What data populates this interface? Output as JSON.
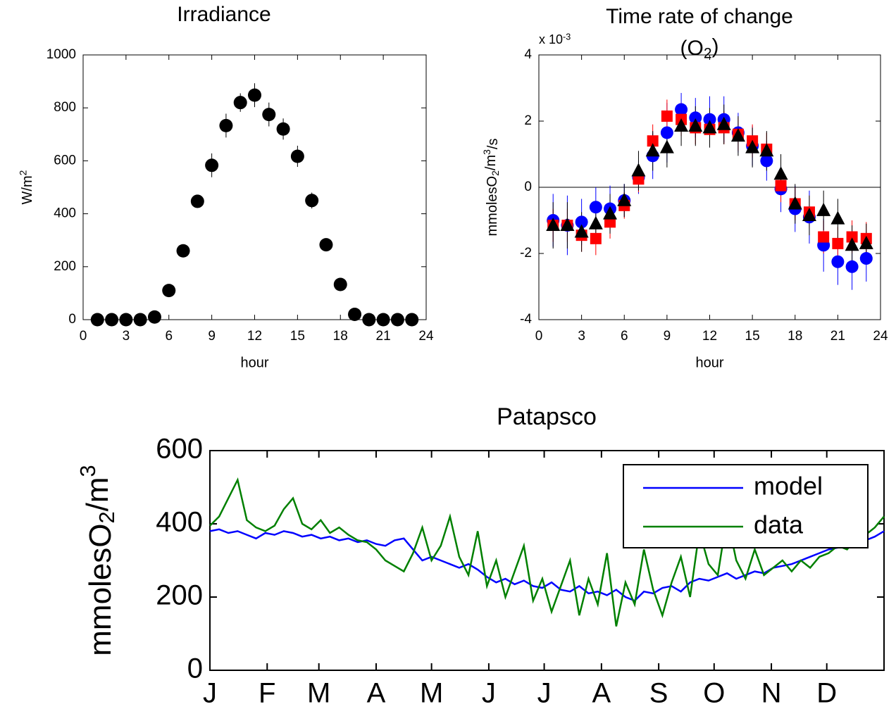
{
  "chart_data": [
    {
      "type": "errorbar",
      "title": [
        [
          {
            "text": "Irradiance"
          }
        ]
      ],
      "ylabel": [
        {
          "text": "W/m"
        },
        {
          "sup": "2"
        }
      ],
      "xlabel": "hour",
      "xlim": [
        0,
        24
      ],
      "xticks": [
        0,
        3,
        6,
        9,
        12,
        15,
        18,
        21,
        24
      ],
      "ylim": [
        0,
        1000
      ],
      "yticks": [
        0,
        200,
        400,
        600,
        800,
        1000
      ],
      "series": [
        {
          "color": "#000000",
          "marker": "circle",
          "x": [
            1,
            2,
            3,
            4,
            5,
            6,
            7,
            8,
            9,
            10,
            11,
            12,
            13,
            14,
            15,
            16,
            17,
            18,
            19,
            20,
            21,
            22,
            23
          ],
          "values": [
            0,
            0,
            0,
            0,
            10,
            110,
            260,
            447,
            583,
            733,
            820,
            848,
            775,
            720,
            617,
            450,
            283,
            133,
            20,
            0,
            0,
            0,
            0
          ],
          "errors": [
            0,
            0,
            0,
            0,
            5,
            15,
            20,
            25,
            45,
            45,
            35,
            45,
            45,
            40,
            40,
            30,
            20,
            15,
            5,
            0,
            0,
            0,
            0
          ]
        }
      ]
    },
    {
      "type": "errorbar",
      "title": [
        [
          {
            "text": "Time rate of change"
          }
        ],
        [
          {
            "text": "(O"
          },
          {
            "sub": "2"
          },
          {
            "text": ")"
          }
        ]
      ],
      "multiplier": [
        {
          "text": "x 10"
        },
        {
          "sup": "-3"
        }
      ],
      "ylabel": [
        {
          "text": "mmolesO"
        },
        {
          "sub": "2"
        },
        {
          "text": "/m"
        },
        {
          "sup": "3"
        },
        {
          "text": "/s"
        }
      ],
      "xlabel": "hour",
      "xlim": [
        0,
        24
      ],
      "xticks": [
        0,
        3,
        6,
        9,
        12,
        15,
        18,
        21,
        24
      ],
      "ylim": [
        -4,
        4
      ],
      "yticks": [
        -4,
        -2,
        0,
        2,
        4
      ],
      "zero_line": true,
      "series": [
        {
          "color": "#0000ff",
          "marker": "circle",
          "x": [
            1,
            2,
            3,
            4,
            5,
            6,
            7,
            8,
            9,
            10,
            11,
            12,
            13,
            14,
            15,
            16,
            17,
            18,
            19,
            20,
            21,
            22,
            23
          ],
          "values": [
            -1.0,
            -1.15,
            -1.05,
            -0.6,
            -0.65,
            -0.4,
            0.3,
            0.95,
            1.65,
            2.35,
            2.1,
            2.05,
            2.05,
            1.65,
            1.25,
            0.8,
            -0.05,
            -0.65,
            -0.9,
            -1.75,
            -2.25,
            -2.4,
            -2.15
          ],
          "errors": [
            0.8,
            0.9,
            0.7,
            0.6,
            0.7,
            0.5,
            0.5,
            0.7,
            0.9,
            0.5,
            0.6,
            0.7,
            0.7,
            0.6,
            0.6,
            0.6,
            0.7,
            0.7,
            0.8,
            0.8,
            0.7,
            0.7,
            0.7
          ]
        },
        {
          "color": "#ff0000",
          "marker": "square",
          "x": [
            1,
            2,
            3,
            4,
            5,
            6,
            7,
            8,
            9,
            10,
            11,
            12,
            13,
            14,
            15,
            16,
            17,
            18,
            19,
            20,
            21,
            22,
            23
          ],
          "values": [
            -1.15,
            -1.15,
            -1.45,
            -1.55,
            -1.05,
            -0.55,
            0.25,
            1.4,
            2.15,
            2.05,
            1.8,
            1.75,
            1.8,
            1.6,
            1.4,
            1.15,
            0.05,
            -0.5,
            -0.75,
            -1.5,
            -1.7,
            -1.5,
            -1.55
          ],
          "errors": [
            0.5,
            0.5,
            0.5,
            0.5,
            0.5,
            0.4,
            0.4,
            0.5,
            0.5,
            0.5,
            0.5,
            0.5,
            0.5,
            0.5,
            0.5,
            0.5,
            0.5,
            0.5,
            0.5,
            0.5,
            0.5,
            0.5,
            0.5
          ]
        },
        {
          "color": "#000000",
          "marker": "triangle",
          "x": [
            1,
            2,
            3,
            4,
            5,
            6,
            7,
            8,
            9,
            10,
            11,
            12,
            13,
            14,
            15,
            16,
            17,
            18,
            19,
            20,
            21,
            22,
            23
          ],
          "values": [
            -1.15,
            -1.15,
            -1.35,
            -1.1,
            -0.8,
            -0.4,
            0.5,
            1.1,
            1.2,
            1.85,
            1.85,
            1.8,
            1.9,
            1.55,
            1.2,
            1.1,
            0.4,
            -0.5,
            -0.85,
            -0.7,
            -0.95,
            -1.75,
            -1.7
          ],
          "errors": [
            0.7,
            0.7,
            0.6,
            0.6,
            0.6,
            0.5,
            0.6,
            0.6,
            0.6,
            0.6,
            0.6,
            0.6,
            0.6,
            0.6,
            0.6,
            0.6,
            0.6,
            0.6,
            0.6,
            0.6,
            0.6,
            0.6,
            0.6
          ]
        }
      ]
    },
    {
      "type": "line",
      "title": [
        [
          {
            "text": "Patapsco"
          }
        ]
      ],
      "ylabel": [
        {
          "text": "mmolesO"
        },
        {
          "sub": "2"
        },
        {
          "text": "/m"
        },
        {
          "sup": "3"
        }
      ],
      "xlim": [
        0,
        365
      ],
      "xticks": [
        {
          "value": 0,
          "label": "J"
        },
        {
          "value": 31,
          "label": "F"
        },
        {
          "value": 59,
          "label": "M"
        },
        {
          "value": 90,
          "label": "A"
        },
        {
          "value": 120,
          "label": "M"
        },
        {
          "value": 151,
          "label": "J"
        },
        {
          "value": 181,
          "label": "J"
        },
        {
          "value": 212,
          "label": "A"
        },
        {
          "value": 243,
          "label": "S"
        },
        {
          "value": 273,
          "label": "O"
        },
        {
          "value": 304,
          "label": "N"
        },
        {
          "value": 334,
          "label": "D"
        }
      ],
      "ylim": [
        0,
        600
      ],
      "yticks": [
        0,
        200,
        400,
        600
      ],
      "legend": "northeast",
      "x": [
        0,
        5,
        10,
        15,
        20,
        25,
        30,
        35,
        40,
        45,
        50,
        55,
        60,
        65,
        70,
        75,
        80,
        85,
        90,
        95,
        100,
        105,
        110,
        115,
        120,
        125,
        130,
        135,
        140,
        145,
        150,
        155,
        160,
        165,
        170,
        175,
        180,
        185,
        190,
        195,
        200,
        205,
        210,
        215,
        220,
        225,
        230,
        235,
        240,
        245,
        250,
        255,
        260,
        265,
        270,
        275,
        280,
        285,
        290,
        295,
        300,
        305,
        310,
        315,
        320,
        325,
        330,
        335,
        340,
        345,
        350,
        355,
        360,
        365
      ],
      "series": [
        {
          "name": "model",
          "color": "#0000ff",
          "values": [
            380,
            385,
            375,
            380,
            370,
            360,
            375,
            370,
            380,
            375,
            365,
            370,
            360,
            365,
            355,
            360,
            350,
            355,
            345,
            340,
            355,
            360,
            330,
            300,
            310,
            300,
            290,
            280,
            290,
            275,
            255,
            240,
            250,
            235,
            245,
            230,
            225,
            240,
            220,
            215,
            230,
            210,
            215,
            205,
            220,
            200,
            190,
            215,
            210,
            225,
            230,
            215,
            240,
            250,
            245,
            255,
            265,
            250,
            260,
            270,
            265,
            280,
            285,
            290,
            300,
            310,
            320,
            330,
            335,
            345,
            350,
            355,
            365,
            380
          ]
        },
        {
          "name": "data",
          "color": "#008000",
          "values": [
            395,
            420,
            470,
            520,
            410,
            390,
            380,
            395,
            440,
            470,
            400,
            385,
            410,
            375,
            390,
            370,
            355,
            350,
            330,
            300,
            285,
            270,
            320,
            390,
            300,
            340,
            420,
            310,
            260,
            380,
            230,
            300,
            200,
            270,
            340,
            190,
            250,
            160,
            230,
            300,
            150,
            250,
            180,
            320,
            120,
            240,
            180,
            330,
            220,
            150,
            240,
            310,
            200,
            380,
            290,
            260,
            420,
            300,
            250,
            330,
            260,
            280,
            300,
            270,
            300,
            280,
            310,
            320,
            340,
            330,
            360,
            370,
            390,
            420
          ]
        }
      ]
    }
  ]
}
